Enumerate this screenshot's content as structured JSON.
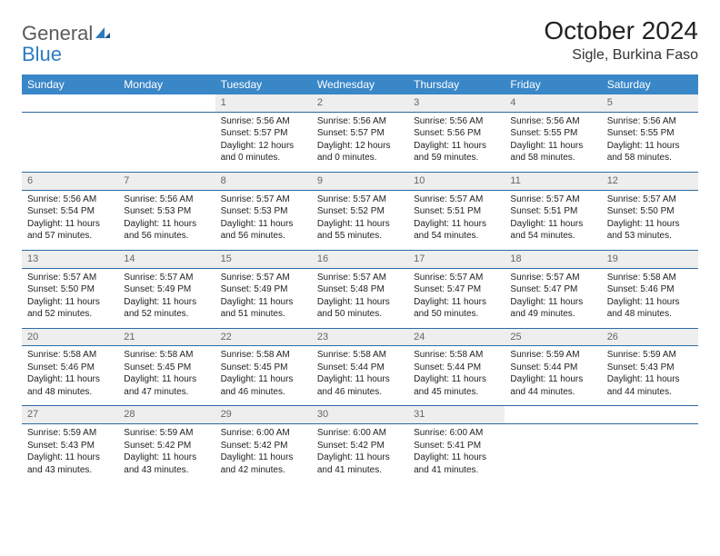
{
  "logo": {
    "word1": "General",
    "word2": "Blue"
  },
  "title": "October 2024",
  "location": "Sigle, Burkina Faso",
  "colors": {
    "header_bg": "#3a87c8",
    "header_text": "#ffffff",
    "row_divider": "#2d6aa3",
    "daynum_bg": "#eeeeee",
    "daynum_text": "#666666",
    "body_text": "#222222",
    "logo_gray": "#5a5a5a",
    "logo_blue": "#2d7bc0",
    "page_bg": "#ffffff"
  },
  "weekdays": [
    "Sunday",
    "Monday",
    "Tuesday",
    "Wednesday",
    "Thursday",
    "Friday",
    "Saturday"
  ],
  "weeks": [
    [
      null,
      null,
      {
        "n": "1",
        "sr": "Sunrise: 5:56 AM",
        "ss": "Sunset: 5:57 PM",
        "dl": "Daylight: 12 hours and 0 minutes."
      },
      {
        "n": "2",
        "sr": "Sunrise: 5:56 AM",
        "ss": "Sunset: 5:57 PM",
        "dl": "Daylight: 12 hours and 0 minutes."
      },
      {
        "n": "3",
        "sr": "Sunrise: 5:56 AM",
        "ss": "Sunset: 5:56 PM",
        "dl": "Daylight: 11 hours and 59 minutes."
      },
      {
        "n": "4",
        "sr": "Sunrise: 5:56 AM",
        "ss": "Sunset: 5:55 PM",
        "dl": "Daylight: 11 hours and 58 minutes."
      },
      {
        "n": "5",
        "sr": "Sunrise: 5:56 AM",
        "ss": "Sunset: 5:55 PM",
        "dl": "Daylight: 11 hours and 58 minutes."
      }
    ],
    [
      {
        "n": "6",
        "sr": "Sunrise: 5:56 AM",
        "ss": "Sunset: 5:54 PM",
        "dl": "Daylight: 11 hours and 57 minutes."
      },
      {
        "n": "7",
        "sr": "Sunrise: 5:56 AM",
        "ss": "Sunset: 5:53 PM",
        "dl": "Daylight: 11 hours and 56 minutes."
      },
      {
        "n": "8",
        "sr": "Sunrise: 5:57 AM",
        "ss": "Sunset: 5:53 PM",
        "dl": "Daylight: 11 hours and 56 minutes."
      },
      {
        "n": "9",
        "sr": "Sunrise: 5:57 AM",
        "ss": "Sunset: 5:52 PM",
        "dl": "Daylight: 11 hours and 55 minutes."
      },
      {
        "n": "10",
        "sr": "Sunrise: 5:57 AM",
        "ss": "Sunset: 5:51 PM",
        "dl": "Daylight: 11 hours and 54 minutes."
      },
      {
        "n": "11",
        "sr": "Sunrise: 5:57 AM",
        "ss": "Sunset: 5:51 PM",
        "dl": "Daylight: 11 hours and 54 minutes."
      },
      {
        "n": "12",
        "sr": "Sunrise: 5:57 AM",
        "ss": "Sunset: 5:50 PM",
        "dl": "Daylight: 11 hours and 53 minutes."
      }
    ],
    [
      {
        "n": "13",
        "sr": "Sunrise: 5:57 AM",
        "ss": "Sunset: 5:50 PM",
        "dl": "Daylight: 11 hours and 52 minutes."
      },
      {
        "n": "14",
        "sr": "Sunrise: 5:57 AM",
        "ss": "Sunset: 5:49 PM",
        "dl": "Daylight: 11 hours and 52 minutes."
      },
      {
        "n": "15",
        "sr": "Sunrise: 5:57 AM",
        "ss": "Sunset: 5:49 PM",
        "dl": "Daylight: 11 hours and 51 minutes."
      },
      {
        "n": "16",
        "sr": "Sunrise: 5:57 AM",
        "ss": "Sunset: 5:48 PM",
        "dl": "Daylight: 11 hours and 50 minutes."
      },
      {
        "n": "17",
        "sr": "Sunrise: 5:57 AM",
        "ss": "Sunset: 5:47 PM",
        "dl": "Daylight: 11 hours and 50 minutes."
      },
      {
        "n": "18",
        "sr": "Sunrise: 5:57 AM",
        "ss": "Sunset: 5:47 PM",
        "dl": "Daylight: 11 hours and 49 minutes."
      },
      {
        "n": "19",
        "sr": "Sunrise: 5:58 AM",
        "ss": "Sunset: 5:46 PM",
        "dl": "Daylight: 11 hours and 48 minutes."
      }
    ],
    [
      {
        "n": "20",
        "sr": "Sunrise: 5:58 AM",
        "ss": "Sunset: 5:46 PM",
        "dl": "Daylight: 11 hours and 48 minutes."
      },
      {
        "n": "21",
        "sr": "Sunrise: 5:58 AM",
        "ss": "Sunset: 5:45 PM",
        "dl": "Daylight: 11 hours and 47 minutes."
      },
      {
        "n": "22",
        "sr": "Sunrise: 5:58 AM",
        "ss": "Sunset: 5:45 PM",
        "dl": "Daylight: 11 hours and 46 minutes."
      },
      {
        "n": "23",
        "sr": "Sunrise: 5:58 AM",
        "ss": "Sunset: 5:44 PM",
        "dl": "Daylight: 11 hours and 46 minutes."
      },
      {
        "n": "24",
        "sr": "Sunrise: 5:58 AM",
        "ss": "Sunset: 5:44 PM",
        "dl": "Daylight: 11 hours and 45 minutes."
      },
      {
        "n": "25",
        "sr": "Sunrise: 5:59 AM",
        "ss": "Sunset: 5:44 PM",
        "dl": "Daylight: 11 hours and 44 minutes."
      },
      {
        "n": "26",
        "sr": "Sunrise: 5:59 AM",
        "ss": "Sunset: 5:43 PM",
        "dl": "Daylight: 11 hours and 44 minutes."
      }
    ],
    [
      {
        "n": "27",
        "sr": "Sunrise: 5:59 AM",
        "ss": "Sunset: 5:43 PM",
        "dl": "Daylight: 11 hours and 43 minutes."
      },
      {
        "n": "28",
        "sr": "Sunrise: 5:59 AM",
        "ss": "Sunset: 5:42 PM",
        "dl": "Daylight: 11 hours and 43 minutes."
      },
      {
        "n": "29",
        "sr": "Sunrise: 6:00 AM",
        "ss": "Sunset: 5:42 PM",
        "dl": "Daylight: 11 hours and 42 minutes."
      },
      {
        "n": "30",
        "sr": "Sunrise: 6:00 AM",
        "ss": "Sunset: 5:42 PM",
        "dl": "Daylight: 11 hours and 41 minutes."
      },
      {
        "n": "31",
        "sr": "Sunrise: 6:00 AM",
        "ss": "Sunset: 5:41 PM",
        "dl": "Daylight: 11 hours and 41 minutes."
      },
      null,
      null
    ]
  ]
}
